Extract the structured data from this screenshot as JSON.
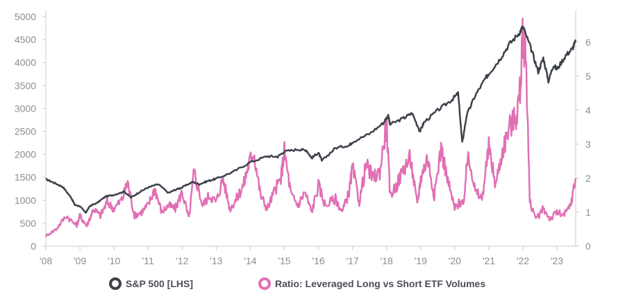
{
  "chart_data": {
    "type": "line",
    "x_tick_labels": [
      "'08",
      "'09",
      "'10",
      "'11",
      "'12",
      "'13",
      "'14",
      "'15",
      "'16",
      "'17",
      "'18",
      "'19",
      "'20",
      "'21",
      "'22",
      "'23"
    ],
    "left_axis": {
      "ylim": [
        0,
        5000
      ],
      "ticks": [
        "0",
        "500",
        "1000",
        "1500",
        "2000",
        "2500",
        "3000",
        "3500",
        "4000",
        "4500",
        "5000"
      ]
    },
    "right_axis": {
      "ylim": [
        0,
        6.75
      ],
      "ticks": [
        "0",
        "1",
        "2",
        "3",
        "4",
        "5",
        "6"
      ]
    },
    "grid": false,
    "legend_position": "bottom-center",
    "series": [
      {
        "name": "S&P 500 [LHS]",
        "axis": "left",
        "color": "#3d414b",
        "x": [
          2008.0,
          2008.25,
          2008.5,
          2008.75,
          2008.85,
          2009.0,
          2009.17,
          2009.3,
          2009.5,
          2009.75,
          2010.0,
          2010.3,
          2010.5,
          2010.75,
          2011.0,
          2011.3,
          2011.6,
          2011.8,
          2012.0,
          2012.3,
          2012.5,
          2012.75,
          2013.0,
          2013.5,
          2014.0,
          2014.5,
          2014.8,
          2015.0,
          2015.4,
          2015.65,
          2015.8,
          2016.0,
          2016.1,
          2016.5,
          2016.9,
          2017.0,
          2017.5,
          2017.9,
          2018.05,
          2018.1,
          2018.5,
          2018.75,
          2018.98,
          2019.1,
          2019.5,
          2019.9,
          2020.1,
          2020.22,
          2020.35,
          2020.6,
          2020.9,
          2021.0,
          2021.3,
          2021.6,
          2021.9,
          2022.0,
          2022.25,
          2022.45,
          2022.6,
          2022.75,
          2022.9,
          2023.0,
          2023.25,
          2023.45,
          2023.55
        ],
        "values": [
          1460,
          1380,
          1290,
          1050,
          900,
          870,
          730,
          880,
          940,
          1080,
          1120,
          1190,
          1060,
          1180,
          1280,
          1350,
          1160,
          1230,
          1280,
          1400,
          1350,
          1420,
          1470,
          1620,
          1830,
          1960,
          1950,
          2060,
          2110,
          2090,
          1920,
          2040,
          1860,
          2140,
          2200,
          2270,
          2450,
          2680,
          2850,
          2650,
          2790,
          2900,
          2500,
          2700,
          2960,
          3180,
          3330,
          2250,
          2850,
          3280,
          3650,
          3760,
          4050,
          4400,
          4650,
          4780,
          4280,
          3800,
          4100,
          3600,
          3950,
          3850,
          4150,
          4300,
          4460
        ]
      },
      {
        "name": "Ratio: Leveraged Long vs Short ETF Volumes",
        "axis": "right",
        "color": "#e070b4",
        "x": [
          2008.0,
          2008.3,
          2008.6,
          2008.9,
          2009.0,
          2009.2,
          2009.4,
          2009.6,
          2009.8,
          2010.0,
          2010.25,
          2010.4,
          2010.6,
          2010.8,
          2011.0,
          2011.2,
          2011.4,
          2011.6,
          2011.8,
          2012.0,
          2012.2,
          2012.35,
          2012.6,
          2012.8,
          2013.0,
          2013.2,
          2013.4,
          2013.6,
          2013.8,
          2013.95,
          2014.1,
          2014.3,
          2014.5,
          2014.7,
          2014.9,
          2015.0,
          2015.2,
          2015.4,
          2015.6,
          2015.8,
          2016.0,
          2016.2,
          2016.5,
          2016.7,
          2016.9,
          2017.0,
          2017.2,
          2017.4,
          2017.6,
          2017.8,
          2018.0,
          2018.1,
          2018.3,
          2018.5,
          2018.7,
          2018.9,
          2019.0,
          2019.2,
          2019.4,
          2019.6,
          2019.8,
          2020.0,
          2020.15,
          2020.25,
          2020.4,
          2020.6,
          2020.8,
          2021.0,
          2021.2,
          2021.4,
          2021.6,
          2021.8,
          2021.92,
          2022.0,
          2022.1,
          2022.2,
          2022.4,
          2022.6,
          2022.8,
          2023.0,
          2023.2,
          2023.4,
          2023.55
        ],
        "values": [
          0.3,
          0.5,
          0.9,
          0.6,
          0.9,
          0.6,
          1.1,
          0.9,
          1.3,
          1.1,
          1.4,
          1.9,
          0.9,
          1.0,
          1.2,
          1.7,
          1.0,
          1.2,
          1.1,
          1.6,
          0.8,
          2.2,
          1.2,
          1.5,
          1.3,
          2.0,
          1.1,
          1.4,
          1.8,
          2.4,
          2.8,
          1.5,
          1.1,
          1.6,
          2.0,
          2.8,
          1.5,
          1.2,
          1.6,
          1.0,
          1.8,
          1.2,
          1.4,
          1.0,
          1.6,
          2.3,
          1.3,
          2.4,
          2.0,
          2.2,
          3.6,
          1.5,
          1.8,
          2.3,
          2.6,
          1.2,
          2.0,
          2.6,
          1.5,
          2.9,
          1.9,
          1.1,
          1.3,
          1.2,
          2.8,
          1.6,
          1.4,
          2.9,
          1.8,
          2.8,
          3.5,
          3.8,
          4.6,
          6.2,
          5.4,
          1.3,
          0.8,
          1.1,
          0.8,
          1.0,
          0.9,
          1.2,
          2.0
        ]
      }
    ]
  },
  "legend": [
    {
      "label": "S&P 500 [LHS]",
      "color": "#3d414b"
    },
    {
      "label": "Ratio: Leveraged Long vs Short ETF Volumes",
      "color": "#e070b4"
    }
  ]
}
